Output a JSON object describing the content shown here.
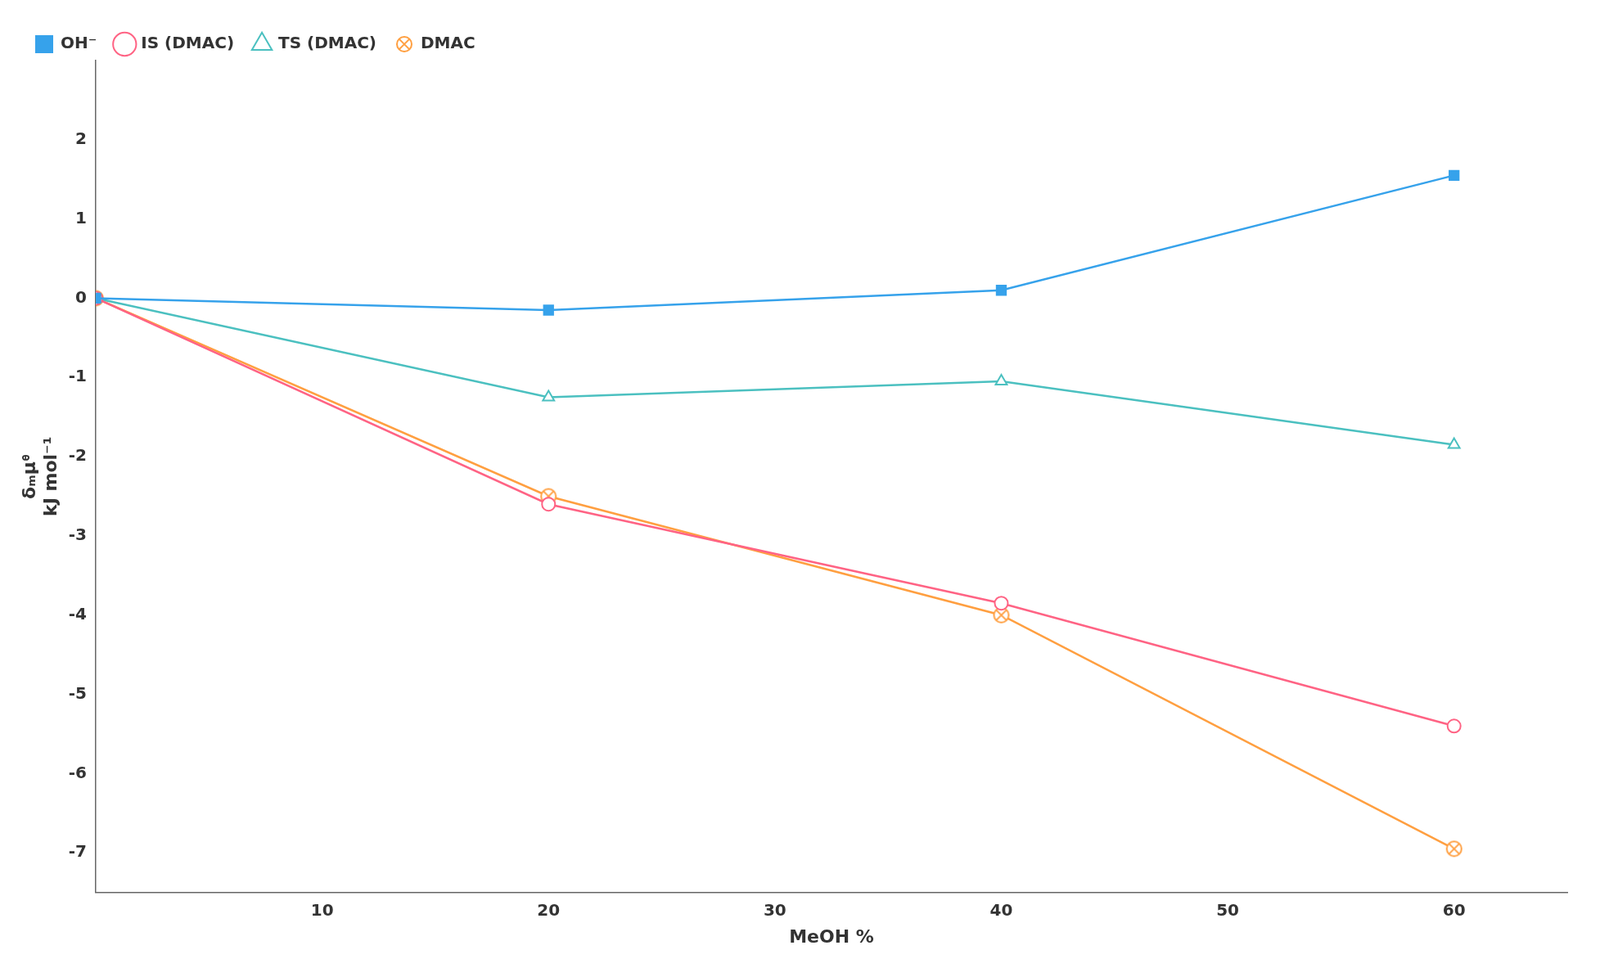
{
  "chart_data": {
    "type": "line",
    "x_label": "MeOH %",
    "y_label": [
      "δₘμᶿ",
      "kJ mol⁻¹"
    ],
    "x": [
      0,
      20,
      40,
      60
    ],
    "series": [
      {
        "name": "OH⁻",
        "marker": "filled_square",
        "values": [
          0,
          -0.15,
          0.1,
          1.55
        ]
      },
      {
        "name": "IS (DMAC)",
        "marker": "open_circle",
        "values": [
          0,
          -2.6,
          -3.85,
          -5.4
        ]
      },
      {
        "name": "TS (DMAC)",
        "marker": "open_triangle",
        "values": [
          0,
          -1.25,
          -1.05,
          -1.85
        ]
      },
      {
        "name": "DMAC",
        "marker": "circled_x",
        "values": [
          0,
          -2.5,
          -4.0,
          -6.95
        ]
      }
    ],
    "xlim": [
      0,
      65
    ],
    "ylim": [
      -7.5,
      3.0
    ],
    "xticks": [
      10,
      20,
      30,
      40,
      50,
      60
    ],
    "yticks": [
      -7,
      -6,
      -5,
      -4,
      -3,
      -2,
      -1,
      0,
      1,
      2
    ],
    "grid": false,
    "legend": "upper left"
  }
}
